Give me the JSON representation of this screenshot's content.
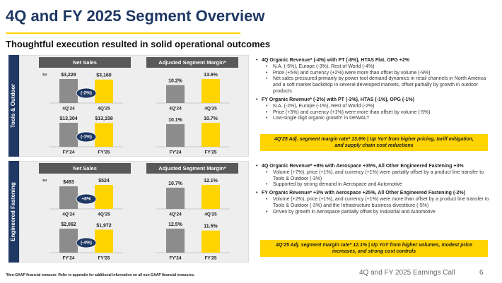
{
  "header": {
    "title": "4Q and FY 2025 Segment Overview",
    "subtitle": "Thoughtful execution resulted in solid operational outcomes"
  },
  "segments": [
    {
      "name": "Tools & Outdoor",
      "net_sales_header": "Net Sales",
      "margin_header": "Adjusted Segment Margin*",
      "blocks": [
        {
          "heading": "4Q Organic Revenue* (-4%) with PT (-8%), HTAS Flat, OPG +2%",
          "bullets": [
            "N.A. (-5%), Europe (-3%), Rest of World (-4%)",
            "Price (+5%) and currency (+2%) were more than offset by volume (-9%)",
            "Net sales pressured primarily by power tool demand dynamics in retail channels in North America and a soft market backdrop in several developed markets, offset partially by growth in outdoor products"
          ]
        },
        {
          "heading": "FY Organic Revenue* (-2%) with PT (-3%), HTAS (-1%), OPG (-1%)",
          "bullets": [
            "N.A. (-2%), Europe (-1%), Rest of World (-2%)",
            "Price (+3%) and currency (+1%) were more than offset by volume (-5%)",
            "Low-single digit organic growth* in DEWALT"
          ]
        }
      ],
      "callout": "4Q'25 Adj. segment margin rate* 13.6% | Up YoY from higher pricing, tariff mitigation, and supply chain cost reductions"
    },
    {
      "name": "Engineered Fastening",
      "net_sales_header": "Net Sales",
      "margin_header": "Adjusted Segment Margin*",
      "blocks": [
        {
          "heading": "4Q Organic Revenue* +8% with Aerospace +35%, All Other Engineered Fastening +3%",
          "bullets": [
            "Volume (+7%), price (+1%), and currency (+1%) were partially offset by a product line transfer to Tools & Outdoor (-3%)",
            "Supported by strong demand in Aerospace and Automotive"
          ]
        },
        {
          "heading": "FY Organic Revenue* +3% with Aerospace +25%, All Other Engineered Fastening (-2%)",
          "bullets": [
            "Volume (+2%), price (+1%), and currency (+1%) were more than offset by a product line transfer to Tools & Outdoor (-3%) and the Infrastructure business divestiture (-5%)",
            "Driven by growth in Aerospace partially offset by Industrial and Automotive"
          ]
        }
      ],
      "callout": "4Q'25 Adj. segment margin rate* 12.1% | Up YoY from higher volumes, modest price increases, and strong cost controls"
    }
  ],
  "chart_data": [
    {
      "type": "bar",
      "unit": "$M",
      "categories": [
        "4Q'24",
        "4Q'25"
      ],
      "values": [
        3228,
        3160
      ],
      "value_labels": [
        "$3,228",
        "$3,160"
      ],
      "colors": [
        "#8c8c8c",
        "#ffd400"
      ],
      "annotation": "(-2%)"
    },
    {
      "type": "bar",
      "categories": [
        "FY'24",
        "FY'25"
      ],
      "values": [
        13304,
        13158
      ],
      "value_labels": [
        "$13,304",
        "$13,158"
      ],
      "colors": [
        "#8c8c8c",
        "#ffd400"
      ],
      "annotation": "(-1%)"
    },
    {
      "type": "bar",
      "categories": [
        "4Q'24",
        "4Q'25"
      ],
      "values": [
        10.2,
        13.6
      ],
      "value_labels": [
        "10.2%",
        "13.6%"
      ],
      "colors": [
        "#8c8c8c",
        "#ffd400"
      ]
    },
    {
      "type": "bar",
      "categories": [
        "FY'24",
        "FY'25"
      ],
      "values": [
        10.1,
        10.7
      ],
      "value_labels": [
        "10.1%",
        "10.7%"
      ],
      "colors": [
        "#8c8c8c",
        "#ffd400"
      ]
    },
    {
      "type": "bar",
      "unit": "$M",
      "categories": [
        "4Q'24",
        "4Q'25"
      ],
      "values": [
        493,
        524
      ],
      "value_labels": [
        "$493",
        "$524"
      ],
      "colors": [
        "#8c8c8c",
        "#ffd400"
      ],
      "annotation": "+6%"
    },
    {
      "type": "bar",
      "categories": [
        "FY'24",
        "FY'25"
      ],
      "values": [
        2062,
        1972
      ],
      "value_labels": [
        "$2,062",
        "$1,972"
      ],
      "colors": [
        "#8c8c8c",
        "#ffd400"
      ],
      "annotation": "(-4%)"
    },
    {
      "type": "bar",
      "categories": [
        "4Q'24",
        "4Q'25"
      ],
      "values": [
        10.7,
        12.1
      ],
      "value_labels": [
        "10.7%",
        "12.1%"
      ],
      "colors": [
        "#8c8c8c",
        "#ffd400"
      ]
    },
    {
      "type": "bar",
      "categories": [
        "FY'24",
        "FY'25"
      ],
      "values": [
        12.5,
        11.5
      ],
      "value_labels": [
        "12.5%",
        "11.5%"
      ],
      "colors": [
        "#8c8c8c",
        "#ffd400"
      ]
    }
  ],
  "footer": {
    "note": "*Non-GAAP financial measure: Refer to appendix for additional information on all non-GAAP financial measures.",
    "event": "4Q and FY 2025 Earnings Call",
    "page": "6"
  }
}
